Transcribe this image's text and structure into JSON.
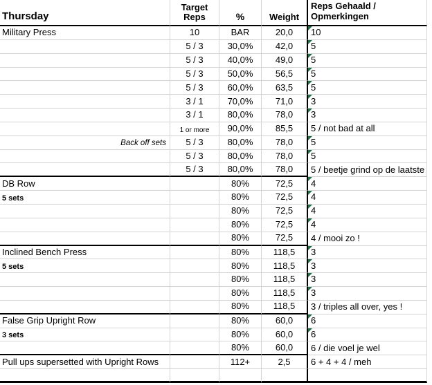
{
  "sheet": {
    "title": "Thursday",
    "headers": {
      "target_reps": "Target Reps",
      "percent": "%",
      "weight": "Weight",
      "reps": "Reps Gehaald / Opmerkingen"
    },
    "colors": {
      "gridline": "#d4d4d4",
      "section_border": "#000000",
      "flag_green": "#1f7145"
    },
    "flag_icon": "cell-flag-triangle",
    "rows": [
      {
        "exercise": "Military Press",
        "exercise_style": "normal",
        "target": "10",
        "target_small": false,
        "pct": "BAR",
        "weight": "20,0",
        "reps": "10",
        "flag": true,
        "sep_below": false
      },
      {
        "exercise": "",
        "exercise_style": "normal",
        "target": "5 / 3",
        "target_small": false,
        "pct": "30,0%",
        "weight": "42,0",
        "reps": "5",
        "flag": true,
        "sep_below": false
      },
      {
        "exercise": "",
        "exercise_style": "normal",
        "target": "5 / 3",
        "target_small": false,
        "pct": "40,0%",
        "weight": "49,0",
        "reps": "5",
        "flag": true,
        "sep_below": false
      },
      {
        "exercise": "",
        "exercise_style": "normal",
        "target": "5 / 3",
        "target_small": false,
        "pct": "50,0%",
        "weight": "56,5",
        "reps": "5",
        "flag": true,
        "sep_below": false
      },
      {
        "exercise": "",
        "exercise_style": "normal",
        "target": "5 / 3",
        "target_small": false,
        "pct": "60,0%",
        "weight": "63,5",
        "reps": "5",
        "flag": true,
        "sep_below": false
      },
      {
        "exercise": "",
        "exercise_style": "normal",
        "target": "3 / 1",
        "target_small": false,
        "pct": "70,0%",
        "weight": "71,0",
        "reps": "3",
        "flag": true,
        "sep_below": false
      },
      {
        "exercise": "",
        "exercise_style": "normal",
        "target": "3 / 1",
        "target_small": false,
        "pct": "80,0%",
        "weight": "78,0",
        "reps": "3",
        "flag": true,
        "sep_below": false
      },
      {
        "exercise": "",
        "exercise_style": "normal",
        "target": "1 or more",
        "target_small": true,
        "pct": "90,0%",
        "weight": "85,5",
        "reps": "5 / not bad at all",
        "flag": false,
        "sep_below": false
      },
      {
        "exercise": "Back off sets",
        "exercise_style": "backoff",
        "target": "5 / 3",
        "target_small": false,
        "pct": "80,0%",
        "weight": "78,0",
        "reps": "5",
        "flag": true,
        "sep_below": false
      },
      {
        "exercise": "",
        "exercise_style": "normal",
        "target": "5 / 3",
        "target_small": false,
        "pct": "80,0%",
        "weight": "78,0",
        "reps": "5",
        "flag": true,
        "sep_below": false
      },
      {
        "exercise": "",
        "exercise_style": "normal",
        "target": "5 / 3",
        "target_small": false,
        "pct": "80,0%",
        "weight": "78,0",
        "reps": "5 / beetje grind op de laatste",
        "flag": false,
        "sep_below": true
      },
      {
        "exercise": "DB Row",
        "exercise_style": "normal",
        "target": "",
        "target_small": false,
        "pct": "80%",
        "weight": "72,5",
        "reps": "4",
        "flag": true,
        "sep_below": false
      },
      {
        "exercise": "5 sets",
        "exercise_style": "sets",
        "target": "",
        "target_small": false,
        "pct": "80%",
        "weight": "72,5",
        "reps": "4",
        "flag": true,
        "sep_below": false
      },
      {
        "exercise": "",
        "exercise_style": "normal",
        "target": "",
        "target_small": false,
        "pct": "80%",
        "weight": "72,5",
        "reps": "4",
        "flag": true,
        "sep_below": false
      },
      {
        "exercise": "",
        "exercise_style": "normal",
        "target": "",
        "target_small": false,
        "pct": "80%",
        "weight": "72,5",
        "reps": "4",
        "flag": true,
        "sep_below": false
      },
      {
        "exercise": "",
        "exercise_style": "normal",
        "target": "",
        "target_small": false,
        "pct": "80%",
        "weight": "72,5",
        "reps": "4 / mooi zo !",
        "flag": false,
        "sep_below": true
      },
      {
        "exercise": "Inclined Bench Press",
        "exercise_style": "normal",
        "target": "",
        "target_small": false,
        "pct": "80%",
        "weight": "118,5",
        "reps": "3",
        "flag": true,
        "sep_below": false
      },
      {
        "exercise": "5 sets",
        "exercise_style": "sets",
        "target": "",
        "target_small": false,
        "pct": "80%",
        "weight": "118,5",
        "reps": "3",
        "flag": true,
        "sep_below": false
      },
      {
        "exercise": "",
        "exercise_style": "normal",
        "target": "",
        "target_small": false,
        "pct": "80%",
        "weight": "118,5",
        "reps": "3",
        "flag": true,
        "sep_below": false
      },
      {
        "exercise": "",
        "exercise_style": "normal",
        "target": "",
        "target_small": false,
        "pct": "80%",
        "weight": "118,5",
        "reps": "3",
        "flag": true,
        "sep_below": false
      },
      {
        "exercise": "",
        "exercise_style": "normal",
        "target": "",
        "target_small": false,
        "pct": "80%",
        "weight": "118,5",
        "reps": "3 / triples all over, yes !",
        "flag": false,
        "sep_below": true
      },
      {
        "exercise": "False Grip Upright Row",
        "exercise_style": "normal",
        "target": "",
        "target_small": false,
        "pct": "80%",
        "weight": "60,0",
        "reps": "6",
        "flag": true,
        "sep_below": false
      },
      {
        "exercise": "3 sets",
        "exercise_style": "sets",
        "target": "",
        "target_small": false,
        "pct": "80%",
        "weight": "60,0",
        "reps": "6",
        "flag": true,
        "sep_below": false
      },
      {
        "exercise": "",
        "exercise_style": "normal",
        "target": "",
        "target_small": false,
        "pct": "80%",
        "weight": "60,0",
        "reps": "6 / die voel je wel",
        "flag": false,
        "sep_below": true
      },
      {
        "exercise": "Pull ups supersetted with Upright Rows",
        "exercise_style": "normal",
        "target": "",
        "target_small": false,
        "pct": "112+",
        "weight": "2,5",
        "reps": "6 + 4 + 4 / meh",
        "flag": false,
        "sep_below": false
      },
      {
        "exercise": "",
        "exercise_style": "normal",
        "target": "",
        "target_small": false,
        "pct": "",
        "weight": "",
        "reps": "",
        "flag": false,
        "sep_below": false
      }
    ]
  }
}
